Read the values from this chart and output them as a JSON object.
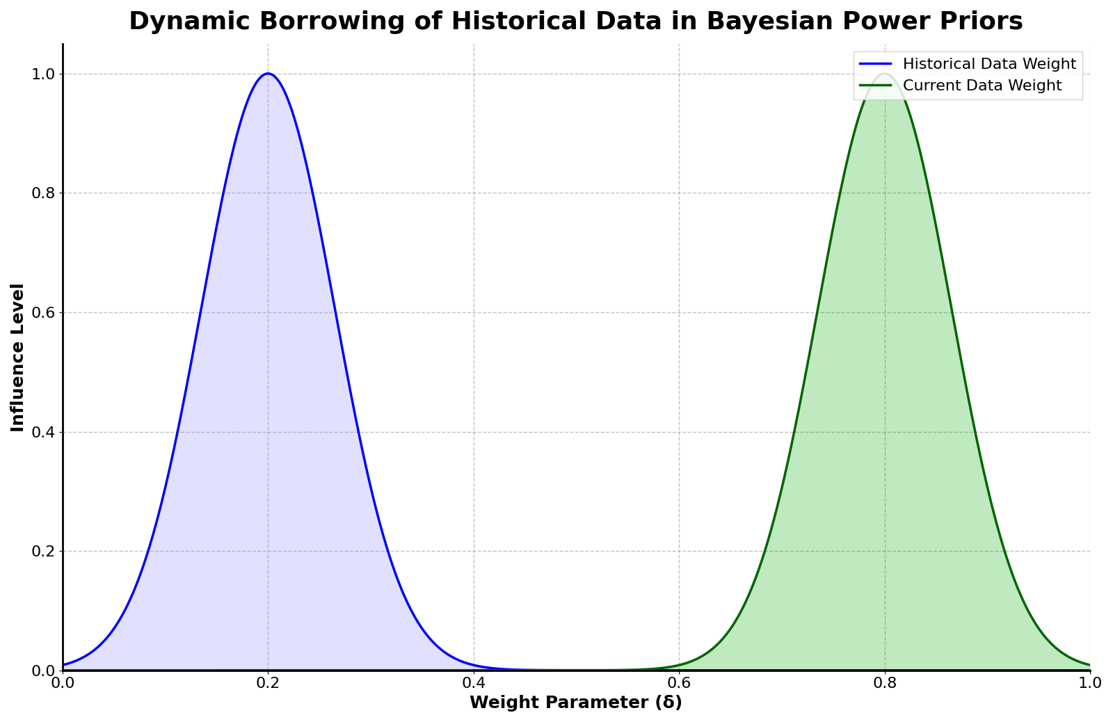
{
  "title": "Dynamic Borrowing of Historical Data in Bayesian Power Priors",
  "xlabel": "Weight Parameter (δ)",
  "ylabel": "Influence Level",
  "hist_color": "#0000ff",
  "curr_color": "#006400",
  "hist_peak": 0.2,
  "curr_peak": 0.8,
  "sigma": 0.065,
  "xlim": [
    0.0,
    1.0
  ],
  "ylim": [
    0.0,
    1.05
  ],
  "hist_label": "Historical Data Weight",
  "curr_label": "Current Data Weight",
  "title_fontsize": 26,
  "label_fontsize": 18,
  "tick_fontsize": 16,
  "legend_fontsize": 16,
  "line_width": 2.5,
  "hist_fill_alpha": 0.25,
  "curr_fill_alpha": 0.25,
  "hist_fill_color": "#8888ff",
  "curr_fill_color": "#00aa00",
  "grid_color": "#999999",
  "grid_style": "--",
  "grid_alpha": 0.6,
  "background_color": "#ffffff",
  "xticks": [
    0.0,
    0.2,
    0.4,
    0.6,
    0.8,
    1.0
  ],
  "yticks": [
    0.0,
    0.2,
    0.4,
    0.6,
    0.8,
    1.0
  ]
}
